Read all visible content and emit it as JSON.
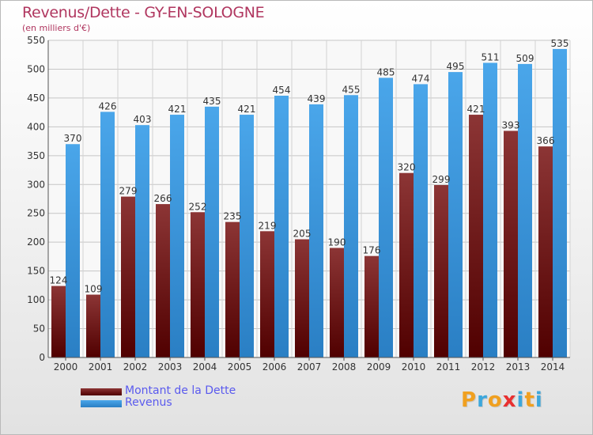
{
  "title": "Revenus/Dette - GY-EN-SOLOGNE",
  "subtitle": "(en milliers d'€)",
  "chart_data": {
    "type": "bar",
    "categories": [
      "2000",
      "2001",
      "2002",
      "2003",
      "2004",
      "2005",
      "2006",
      "2007",
      "2008",
      "2009",
      "2010",
      "2011",
      "2012",
      "2013",
      "2014"
    ],
    "series": [
      {
        "name": "Montant de la Dette",
        "color": "#7a1f1f",
        "values": [
          124,
          109,
          279,
          266,
          252,
          235,
          219,
          205,
          190,
          176,
          320,
          299,
          421,
          393,
          366
        ]
      },
      {
        "name": "Revenus",
        "color": "#3a98e0",
        "values": [
          370,
          426,
          403,
          421,
          435,
          421,
          454,
          439,
          455,
          485,
          474,
          495,
          511,
          509,
          535
        ]
      }
    ],
    "ylim": [
      0,
      550
    ],
    "yticks": [
      0,
      50,
      100,
      150,
      200,
      250,
      300,
      350,
      400,
      450,
      500,
      550
    ],
    "grid": true,
    "legend_position": "bottom-left"
  },
  "legend": [
    {
      "label": "Montant de la Dette",
      "color": "#7a1f1f"
    },
    {
      "label": "Revenus",
      "color": "#3a98e0"
    }
  ],
  "logo": {
    "letters": [
      "P",
      "r",
      "o",
      "x",
      "i",
      "t",
      "i"
    ],
    "colors": [
      "#f0a020",
      "#3da7dc",
      "#f0a020",
      "#e83030",
      "#3da7dc",
      "#f0a020",
      "#3da7dc"
    ]
  }
}
